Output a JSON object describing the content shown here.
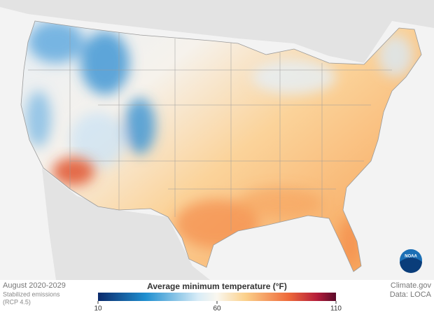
{
  "period": "August 2020-2029",
  "scenario": "Stabilized emissions",
  "scenario_note": "(RCP 4.5)",
  "logo": "NOAA",
  "source": "Climate.gov",
  "data_source": "Data: LOCA",
  "legend": {
    "title": "Average minimum temperature (°F)",
    "range": [
      10,
      110
    ],
    "ticks": [
      10,
      60,
      110
    ]
  }
}
